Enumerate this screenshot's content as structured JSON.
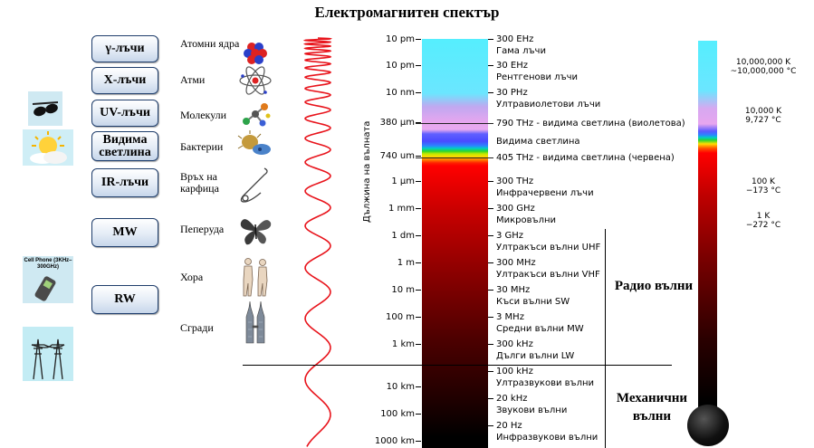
{
  "title": "Електромагнитен спектър",
  "radiation_buttons": [
    {
      "label": "γ-лъчи"
    },
    {
      "label": "X-лъчи"
    },
    {
      "label": "UV-лъчи"
    },
    {
      "label": "Видима светлина"
    },
    {
      "label": "IR-лъчи"
    },
    {
      "label": "MW"
    },
    {
      "label": "RW"
    }
  ],
  "left_icons": [
    {
      "icon": "sunglasses-icon"
    },
    {
      "icon": "sun-icon"
    },
    {
      "icon": "cell-phone-icon",
      "caption": "Cell Phone (3KHz–300GHz)"
    },
    {
      "icon": "power-tower-icon"
    }
  ],
  "object_scale": [
    {
      "label": "Атомни ядра",
      "icon": "nucleus-icon"
    },
    {
      "label": "Атми",
      "icon": "atom-icon"
    },
    {
      "label": "Молекули",
      "icon": "molecule-icon"
    },
    {
      "label": "Бактерии",
      "icon": "bacteria-icon"
    },
    {
      "label": "Връх на карфица",
      "icon": "pin-icon"
    },
    {
      "label": "Пеперуда",
      "icon": "butterfly-icon"
    },
    {
      "label": "Хора",
      "icon": "humans-icon"
    },
    {
      "label": "Сгради",
      "icon": "buildings-icon"
    }
  ],
  "wave_axis_label": "Дължина на вълната",
  "wavelengths": [
    "10 pm",
    "10 pm",
    "10 nm",
    "380 μm",
    "740 um",
    "1 μm",
    "1 mm",
    "1 dm",
    "1 m",
    "10 m",
    "100 m",
    "1 km",
    "10 km",
    "100 km",
    "1000 km"
  ],
  "frequencies": [
    {
      "value": "300 EHz",
      "name": "Гама лъчи"
    },
    {
      "value": "30 EHz",
      "name": "Рентгенови лъчи"
    },
    {
      "value": "30 PHz",
      "name": "Ултравиолетови лъчи"
    },
    {
      "value": "790 THz - видима светлина (виолетова)",
      "name": ""
    },
    {
      "value": "",
      "name": "Видима светлина"
    },
    {
      "value": "405 THz - видима светлина (червена)",
      "name": ""
    },
    {
      "value": "300 THz",
      "name": "Инфрачервени лъчи"
    },
    {
      "value": "300 GHz",
      "name": "Микровълни"
    },
    {
      "value": "3 GHz",
      "name": "Ултракъси вълни UHF"
    },
    {
      "value": "300 MHz",
      "name": "Ултракъси вълни VHF"
    },
    {
      "value": "30 MHz",
      "name": "Къси вълни SW"
    },
    {
      "value": "3 MHz",
      "name": "Средни вълни MW"
    },
    {
      "value": "300 kHz",
      "name": "Дълги вълни LW"
    },
    {
      "value": "100 kHz",
      "name": "Ултразвукови вълни"
    },
    {
      "value": "20 kHz",
      "name": "Звукови вълни"
    },
    {
      "value": "20 Hz",
      "name": "Инфразвукови вълни"
    }
  ],
  "bands": {
    "radio": "Радио вълни",
    "mechanical": "Механични вълни"
  },
  "temperatures": [
    {
      "kelvin": "10,000,000 K",
      "celsius": "~10,000,000 °C"
    },
    {
      "kelvin": "10,000 K",
      "celsius": "9,727 °C"
    },
    {
      "kelvin": "100 K",
      "celsius": "−173 °C"
    },
    {
      "kelvin": "1 K",
      "celsius": "−272 °C"
    }
  ],
  "colors": {
    "gamma": "#5ff0ff",
    "uv": "#d4a6f0",
    "visible_red": "#ff0000",
    "low": "#000000",
    "wave": "#e8131b"
  }
}
